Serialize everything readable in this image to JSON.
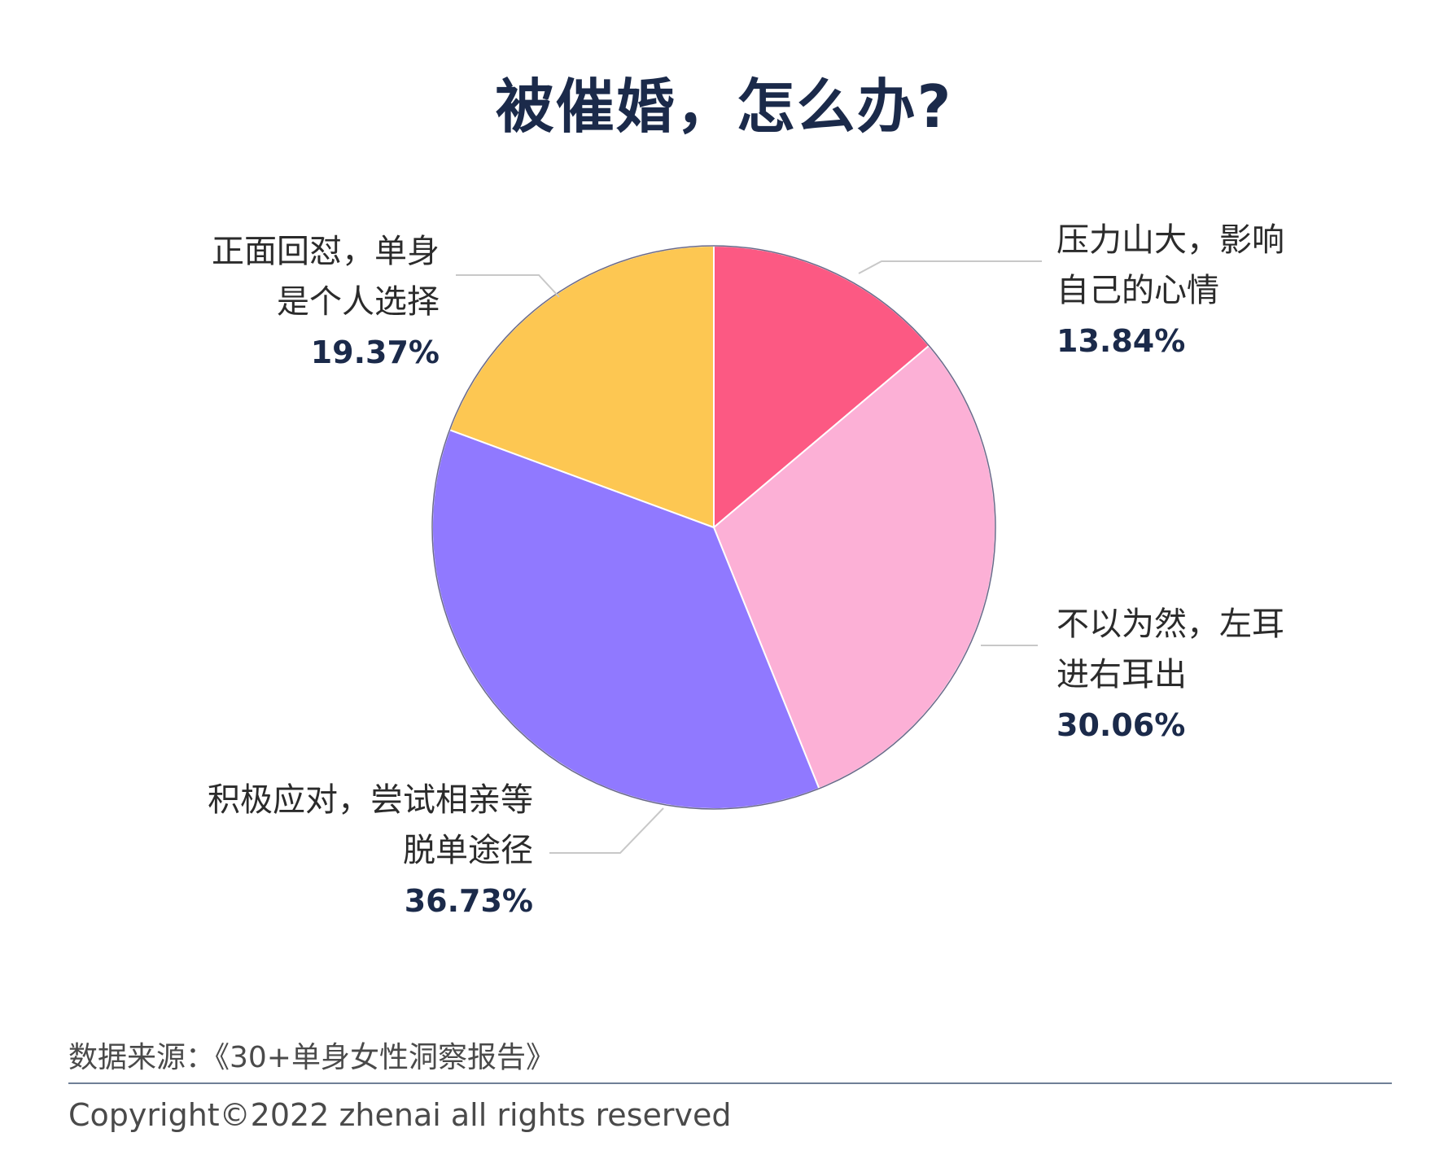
{
  "chart_data": {
    "type": "pie",
    "title": "被催婚，怎么办?",
    "slices": [
      {
        "label_lines": [
          "压力山大，影响",
          "自己的心情"
        ],
        "value": 13.84,
        "value_label": "13.84%",
        "color": "#fc5983"
      },
      {
        "label_lines": [
          "不以为然，左耳",
          "进右耳出"
        ],
        "value": 30.06,
        "value_label": "30.06%",
        "color": "#fcb0d6"
      },
      {
        "label_lines": [
          "积极应对，尝试相亲等",
          "脱单途径"
        ],
        "value": 36.73,
        "value_label": "36.73%",
        "color": "#9079ff"
      },
      {
        "label_lines": [
          "正面回怼，单身",
          "是个人选择"
        ],
        "value": 19.37,
        "value_label": "19.37%",
        "color": "#fdc752"
      }
    ]
  },
  "footer": {
    "source": "数据来源：《30+单身女性洞察报告》",
    "copyright": "Copyright©2022  zhenai  all rights reserved"
  }
}
